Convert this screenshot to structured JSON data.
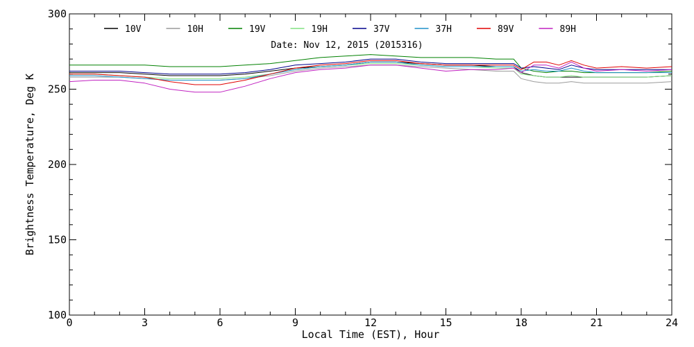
{
  "chart_data": {
    "type": "line",
    "title": "",
    "annotation": "Date: Nov 12, 2015 (2015316)",
    "xlabel": "Local Time (EST), Hour",
    "ylabel": "Brightness Temperature, Deg K",
    "xlim": [
      0,
      24
    ],
    "ylim": [
      100,
      300
    ],
    "xticks": [
      0,
      3,
      6,
      9,
      12,
      15,
      18,
      21,
      24
    ],
    "yticks": [
      100,
      150,
      200,
      250,
      300
    ],
    "grid": false,
    "legend_position": "top",
    "series": [
      {
        "name": "10V",
        "color": "#000000",
        "x": [
          0,
          1,
          2,
          3,
          4,
          5,
          6,
          7,
          8,
          9,
          10,
          11,
          12,
          13,
          14,
          15,
          16,
          17,
          17.7,
          18,
          18.5,
          19,
          19.5,
          20,
          20.5,
          21,
          22,
          23,
          24
        ],
        "y": [
          261,
          261,
          261,
          260,
          259,
          259,
          259,
          260,
          262,
          264,
          265,
          266,
          268,
          268,
          267,
          266,
          266,
          265,
          265,
          261,
          259,
          258,
          258,
          258,
          258,
          258,
          258,
          258,
          259
        ]
      },
      {
        "name": "10H",
        "color": "#9a9a9a",
        "x": [
          0,
          1,
          2,
          3,
          4,
          5,
          6,
          7,
          8,
          9,
          10,
          11,
          12,
          13,
          14,
          15,
          16,
          17,
          17.7,
          18,
          18.5,
          19,
          19.5,
          20,
          20.5,
          21,
          22,
          23,
          24
        ],
        "y": [
          258,
          258,
          258,
          257,
          256,
          256,
          256,
          257,
          259,
          262,
          264,
          265,
          266,
          266,
          265,
          264,
          263,
          262,
          262,
          257,
          255,
          254,
          254,
          255,
          254,
          254,
          254,
          254,
          255
        ]
      },
      {
        "name": "19V",
        "color": "#008000",
        "x": [
          0,
          1,
          2,
          3,
          4,
          5,
          6,
          7,
          8,
          9,
          10,
          11,
          12,
          13,
          14,
          15,
          16,
          17,
          17.7,
          18,
          18.5,
          19,
          19.5,
          20,
          20.5,
          21,
          22,
          23,
          24
        ],
        "y": [
          266,
          266,
          266,
          266,
          265,
          265,
          265,
          266,
          267,
          269,
          271,
          272,
          273,
          272,
          271,
          271,
          271,
          270,
          270,
          264,
          262,
          261,
          262,
          262,
          261,
          261,
          261,
          261,
          262
        ]
      },
      {
        "name": "19H",
        "color": "#80e080",
        "x": [
          0,
          1,
          2,
          3,
          4,
          5,
          6,
          7,
          8,
          9,
          10,
          11,
          12,
          13,
          14,
          15,
          16,
          17,
          17.7,
          18,
          18.5,
          19,
          19.5,
          20,
          20.5,
          21,
          22,
          23,
          24
        ],
        "y": [
          260,
          260,
          259,
          258,
          257,
          257,
          257,
          258,
          260,
          263,
          265,
          266,
          267,
          267,
          266,
          265,
          265,
          264,
          264,
          260,
          259,
          258,
          258,
          259,
          258,
          258,
          258,
          258,
          259
        ]
      },
      {
        "name": "37V",
        "color": "#00008b",
        "x": [
          0,
          1,
          2,
          3,
          4,
          5,
          6,
          7,
          8,
          9,
          10,
          11,
          12,
          13,
          14,
          15,
          16,
          17,
          17.7,
          18,
          18.5,
          19,
          19.5,
          20,
          20.5,
          21,
          22,
          23,
          24
        ],
        "y": [
          262,
          262,
          262,
          261,
          260,
          260,
          260,
          261,
          263,
          266,
          267,
          268,
          270,
          270,
          268,
          267,
          267,
          267,
          267,
          264,
          265,
          264,
          263,
          266,
          264,
          263,
          263,
          263,
          263
        ]
      },
      {
        "name": "37H",
        "color": "#1e90c8",
        "x": [
          0,
          1,
          2,
          3,
          4,
          5,
          6,
          7,
          8,
          9,
          10,
          11,
          12,
          13,
          14,
          15,
          16,
          17,
          17.7,
          18,
          18.5,
          19,
          19.5,
          20,
          20.5,
          21,
          22,
          23,
          24
        ],
        "y": [
          259,
          259,
          258,
          257,
          256,
          256,
          256,
          257,
          260,
          263,
          265,
          266,
          268,
          268,
          266,
          265,
          265,
          265,
          265,
          262,
          263,
          262,
          262,
          264,
          262,
          261,
          261,
          261,
          261
        ]
      },
      {
        "name": "89V",
        "color": "#e00000",
        "x": [
          0,
          1,
          2,
          3,
          4,
          5,
          6,
          7,
          8,
          9,
          10,
          11,
          12,
          13,
          14,
          15,
          16,
          17,
          17.7,
          18,
          18.5,
          19,
          19.5,
          20,
          20.5,
          21,
          22,
          23,
          24
        ],
        "y": [
          260,
          260,
          259,
          258,
          255,
          253,
          253,
          256,
          260,
          264,
          266,
          267,
          269,
          269,
          267,
          266,
          266,
          266,
          266,
          263,
          268,
          268,
          266,
          269,
          266,
          264,
          265,
          264,
          265
        ]
      },
      {
        "name": "89H",
        "color": "#c020c0",
        "x": [
          0,
          1,
          2,
          3,
          4,
          5,
          6,
          7,
          8,
          9,
          10,
          11,
          12,
          13,
          14,
          15,
          16,
          17,
          17.7,
          18,
          18.5,
          19,
          19.5,
          20,
          20.5,
          21,
          22,
          23,
          24
        ],
        "y": [
          255,
          256,
          256,
          254,
          250,
          248,
          248,
          252,
          257,
          261,
          263,
          264,
          266,
          266,
          264,
          262,
          263,
          263,
          264,
          261,
          266,
          266,
          264,
          268,
          264,
          262,
          263,
          262,
          263
        ]
      }
    ]
  }
}
